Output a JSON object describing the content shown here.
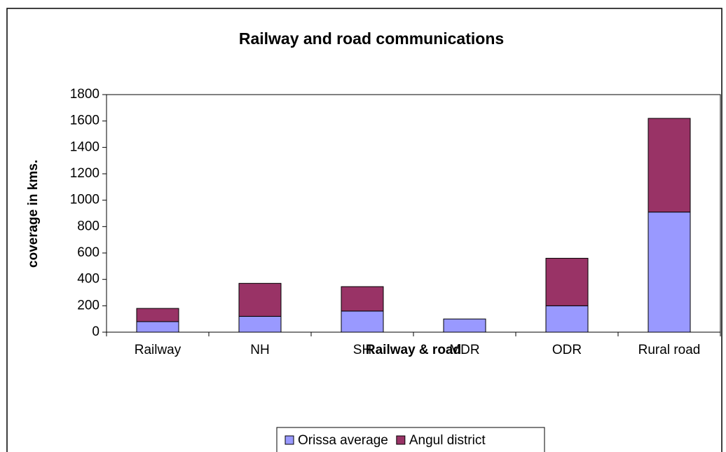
{
  "chart_data": {
    "type": "stacked_bar",
    "title": "Railway and road communications",
    "x_label": "Railway & road",
    "y_label": "coverage in kms.",
    "categories": [
      "Railway",
      "NH",
      "SH",
      "MDR",
      "ODR",
      "Rural road"
    ],
    "series": [
      {
        "name": "Orissa average",
        "color": "#9999ff",
        "values": [
          80,
          120,
          160,
          100,
          200,
          910
        ]
      },
      {
        "name": "Angul district",
        "color": "#993366",
        "values": [
          100,
          250,
          185,
          0,
          360,
          710
        ]
      }
    ],
    "ylim": [
      0,
      1800
    ],
    "yticks": [
      0,
      200,
      400,
      600,
      800,
      1000,
      1200,
      1400,
      1600,
      1800
    ],
    "grid": false,
    "legend": "bottom"
  }
}
